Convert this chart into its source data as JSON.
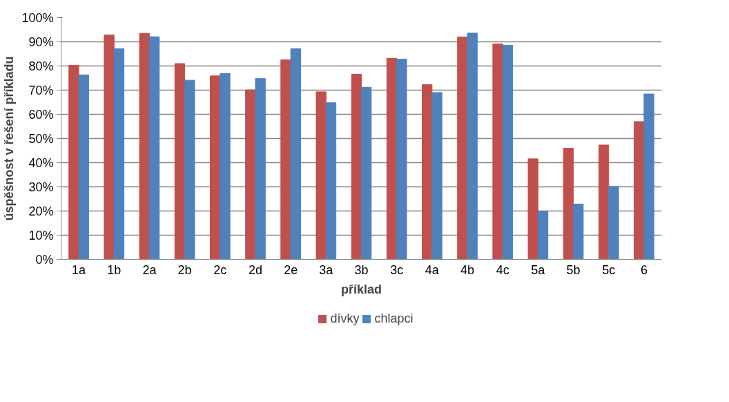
{
  "chart_data": {
    "type": "bar",
    "xlabel": "příklad",
    "ylabel": "úspěšnost v řešení příkladu",
    "categories": [
      "1a",
      "1b",
      "2a",
      "2b",
      "2c",
      "2d",
      "2e",
      "3a",
      "3b",
      "3c",
      "4a",
      "4b",
      "4c",
      "5a",
      "5b",
      "5c",
      "6"
    ],
    "series": [
      {
        "name": "dívky",
        "color": "#c0504d",
        "values": [
          80.3,
          92.8,
          93.5,
          81.0,
          75.9,
          70.1,
          82.5,
          69.3,
          76.6,
          83.2,
          72.3,
          92.0,
          89.1,
          41.6,
          46.0,
          47.3,
          57.0
        ]
      },
      {
        "name": "chlapci",
        "color": "#4f81bd",
        "values": [
          76.3,
          87.1,
          92.1,
          74.1,
          76.9,
          74.8,
          87.1,
          64.8,
          71.2,
          82.8,
          69.0,
          93.6,
          88.6,
          20.0,
          22.9,
          30.2,
          68.4
        ]
      }
    ],
    "ylim": [
      0,
      100
    ],
    "yticks": [
      {
        "value": 0,
        "label": "0%"
      },
      {
        "value": 10,
        "label": "10%"
      },
      {
        "value": 20,
        "label": "20%"
      },
      {
        "value": 30,
        "label": "30%"
      },
      {
        "value": 40,
        "label": "40%"
      },
      {
        "value": 50,
        "label": "50%"
      },
      {
        "value": 60,
        "label": "60%"
      },
      {
        "value": 70,
        "label": "70%"
      },
      {
        "value": 80,
        "label": "80%"
      },
      {
        "value": 90,
        "label": "90%"
      },
      {
        "value": 100,
        "label": "100%"
      }
    ],
    "grid": "y",
    "legend": "bottom"
  }
}
